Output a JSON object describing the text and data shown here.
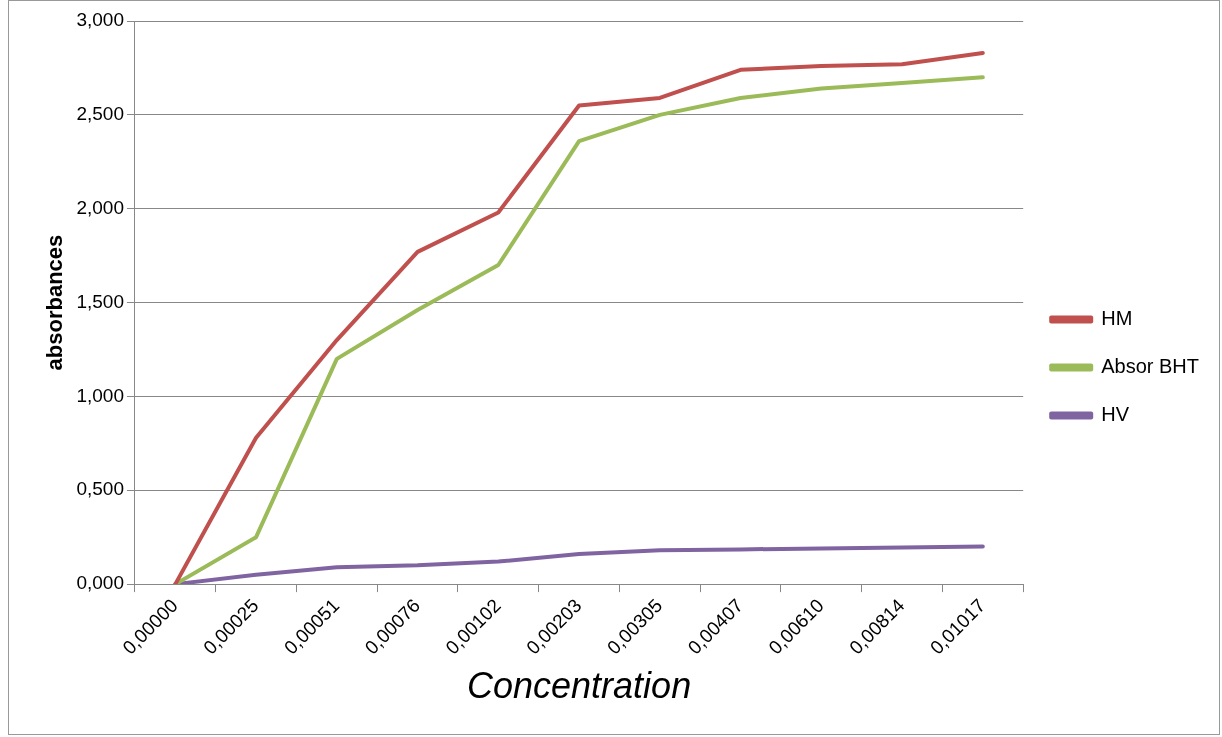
{
  "chart_data": {
    "type": "line",
    "xlabel": "Concentration",
    "ylabel": "absorbances",
    "categories": [
      "0,00000",
      "0,00025",
      "0,00051",
      "0,00076",
      "0,00102",
      "0,00203",
      "0,00305",
      "0,00407",
      "0,00610",
      "0,00814",
      "0,01017"
    ],
    "series": [
      {
        "name": "HM",
        "color": "#c0504d",
        "values": [
          0,
          0.78,
          1.3,
          1.77,
          1.98,
          2.55,
          2.59,
          2.74,
          2.76,
          2.77,
          2.83
        ]
      },
      {
        "name": "Absor BHT",
        "color": "#9bbb59",
        "values": [
          0,
          0.25,
          1.2,
          1.46,
          1.7,
          2.36,
          2.5,
          2.59,
          2.64,
          2.67,
          2.7
        ]
      },
      {
        "name": "HV",
        "color": "#8064a2",
        "values": [
          0,
          0.05,
          0.09,
          0.1,
          0.12,
          0.16,
          0.18,
          0.185,
          0.19,
          0.195,
          0.2
        ]
      }
    ],
    "ylim": [
      0,
      3
    ],
    "yticks": [
      {
        "value": 0,
        "label": "0,000"
      },
      {
        "value": 0.5,
        "label": "0,500"
      },
      {
        "value": 1,
        "label": "1,000"
      },
      {
        "value": 1.5,
        "label": "1,500"
      },
      {
        "value": 2,
        "label": "2,000"
      },
      {
        "value": 2.5,
        "label": "2,500"
      },
      {
        "value": 3,
        "label": "3,000"
      }
    ],
    "grid": "y",
    "legend": "right",
    "marker": "none",
    "line_style": "solid"
  }
}
